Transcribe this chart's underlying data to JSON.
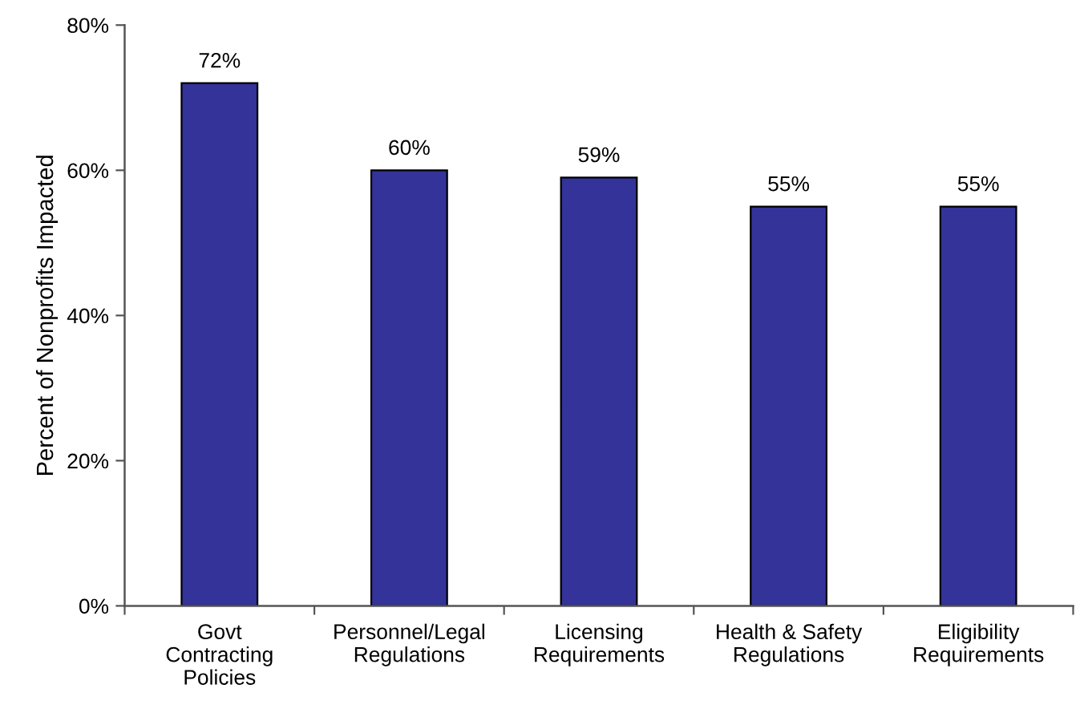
{
  "chart_data": {
    "type": "bar",
    "ylabel": "Percent of Nonprofits Impacted",
    "categories": [
      "Govt Contracting Policies",
      "Personnel/Legal Regulations",
      "Licensing Requirements",
      "Health & Safety Regulations",
      "Eligibility Requirements"
    ],
    "values": [
      72,
      60,
      59,
      55,
      55
    ],
    "value_labels": [
      "72%",
      "60%",
      "59%",
      "55%",
      "55%"
    ],
    "color": "#333399",
    "ylim": [
      0,
      80
    ],
    "yticks": [
      {
        "value": 0,
        "label": "0%"
      },
      {
        "value": 20,
        "label": "20%"
      },
      {
        "value": 40,
        "label": "40%"
      },
      {
        "value": 60,
        "label": "60%"
      },
      {
        "value": 80,
        "label": "80%"
      }
    ],
    "grid": false,
    "legend": false
  }
}
